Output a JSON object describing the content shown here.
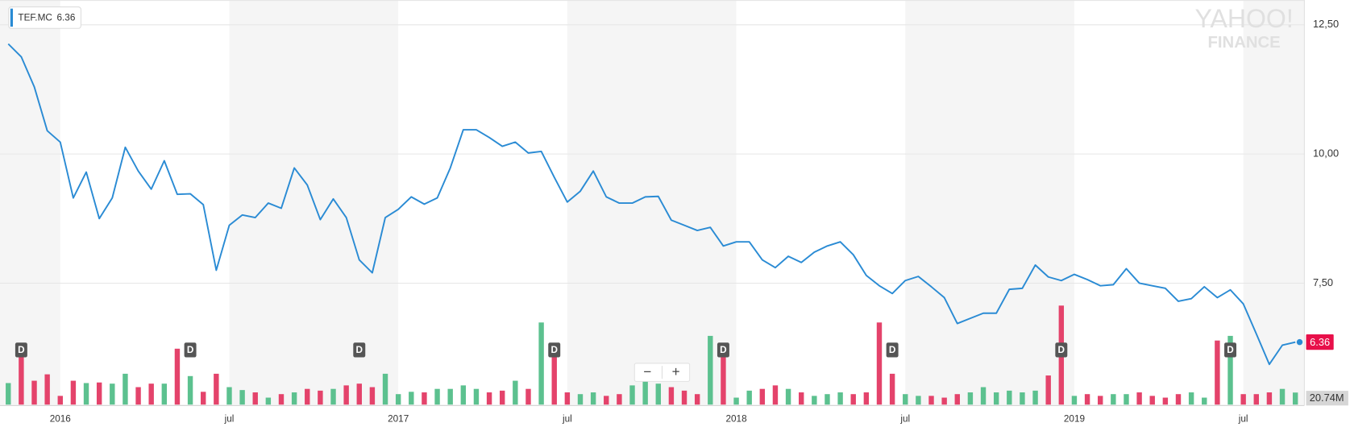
{
  "chart_data": {
    "type": "line",
    "categories": [
      null,
      null,
      null,
      null,
      "2016",
      null,
      null,
      null,
      null,
      null,
      null,
      null,
      null,
      null,
      null,
      null,
      null,
      "jul",
      null,
      null,
      null,
      null,
      null,
      null,
      null,
      null,
      null,
      null,
      null,
      null,
      "2017",
      null,
      null,
      null,
      null,
      null,
      null,
      null,
      null,
      null,
      null,
      null,
      null,
      "jul",
      null,
      null,
      null,
      null,
      null,
      null,
      null,
      null,
      null,
      null,
      null,
      null,
      "2018",
      null,
      null,
      null,
      null,
      null,
      null,
      null,
      null,
      null,
      null,
      null,
      null,
      "jul",
      null,
      null,
      null,
      null,
      null,
      null,
      null,
      null,
      null,
      null,
      null,
      null,
      "2019",
      null,
      null,
      null,
      null,
      null,
      null,
      null,
      null,
      null,
      null,
      null,
      null,
      "jul",
      null,
      null,
      null,
      null
    ],
    "series": [
      {
        "name": "TEF.MC",
        "color": "#2a8bd4",
        "values": [
          12.13,
          11.88,
          11.3,
          10.45,
          10.23,
          9.15,
          9.65,
          8.75,
          9.15,
          10.13,
          9.67,
          9.32,
          9.87,
          9.22,
          9.23,
          9.02,
          7.75,
          8.62,
          8.82,
          8.77,
          9.05,
          8.95,
          9.73,
          9.4,
          8.73,
          9.13,
          8.77,
          7.95,
          7.7,
          8.77,
          8.93,
          9.17,
          9.03,
          9.15,
          9.73,
          10.47,
          10.47,
          10.32,
          10.15,
          10.23,
          10.02,
          10.05,
          9.55,
          9.07,
          9.28,
          9.67,
          9.17,
          9.05,
          9.05,
          9.17,
          9.18,
          8.72,
          8.62,
          8.52,
          8.58,
          8.22,
          8.3,
          8.3,
          7.95,
          7.8,
          8.02,
          7.9,
          8.1,
          8.22,
          8.3,
          8.05,
          7.65,
          7.45,
          7.3,
          7.55,
          7.63,
          7.43,
          7.22,
          6.72,
          6.82,
          6.92,
          6.92,
          7.38,
          7.4,
          7.85,
          7.62,
          7.55,
          7.67,
          7.57,
          7.45,
          7.47,
          7.78,
          7.5,
          7.45,
          7.4,
          7.15,
          7.2,
          7.43,
          7.22,
          7.37,
          7.1,
          6.52,
          5.93,
          6.3,
          6.36
        ]
      }
    ],
    "volume": {
      "axis": "y2",
      "up_color": "#5cc18f",
      "down_color": "#e4436b",
      "values": [
        37,
        96,
        41,
        52,
        15,
        41,
        37,
        38,
        36,
        53,
        30,
        36,
        36,
        96,
        49,
        22,
        53,
        30,
        25,
        21,
        12,
        18,
        21,
        27,
        24,
        27,
        33,
        36,
        30,
        53,
        18,
        22,
        21,
        27,
        27,
        33,
        27,
        21,
        24,
        41,
        27,
        141,
        104,
        21,
        18,
        21,
        15,
        18,
        33,
        41,
        36,
        30,
        24,
        18,
        118,
        89,
        12,
        24,
        27,
        33,
        27,
        21,
        15,
        18,
        21,
        18,
        21,
        141,
        53,
        18,
        15,
        15,
        12,
        18,
        21,
        30,
        21,
        24,
        21,
        24,
        50,
        170,
        15,
        18,
        15,
        18,
        18,
        21,
        15,
        12,
        18,
        21,
        12,
        110,
        118,
        18,
        18,
        21,
        27,
        20.74
      ],
      "value_labels": [
        null,
        null,
        null,
        null,
        null,
        null,
        null,
        null,
        null,
        null,
        null,
        null,
        null,
        null,
        null,
        null,
        null,
        null,
        null,
        null,
        null,
        null,
        null,
        null,
        null,
        null,
        null,
        null,
        null,
        null,
        null,
        null,
        null,
        null,
        null,
        null,
        null,
        null,
        null,
        null,
        null,
        null,
        null,
        null,
        null,
        null,
        null,
        null,
        null,
        null,
        null,
        null,
        null,
        null,
        null,
        null,
        null,
        null,
        null,
        null,
        null,
        null,
        null,
        null,
        null,
        null,
        null,
        null,
        null,
        null,
        null,
        null,
        null,
        null,
        null,
        null,
        null,
        null,
        null,
        null,
        null,
        null,
        null,
        null,
        null,
        null,
        null,
        null,
        null,
        null,
        null,
        null,
        null,
        null,
        null,
        null,
        null,
        null,
        null,
        "20.74M"
      ]
    },
    "ylim": [
      5.15,
      12.98
    ],
    "yticks": [
      {
        "value": 7.5,
        "label": "7,50"
      },
      {
        "value": 10,
        "label": "10,00"
      },
      {
        "value": 12.5,
        "label": "12,50"
      }
    ],
    "y2lim": [
      0,
      300
    ],
    "grid": true,
    "dividends": {
      "label": "D",
      "at": [
        1,
        14,
        27,
        42,
        55,
        68,
        81,
        94
      ]
    },
    "watermark": [
      "YAHOO!",
      "FINANCE"
    ],
    "controls": [
      "−",
      "+"
    ]
  }
}
